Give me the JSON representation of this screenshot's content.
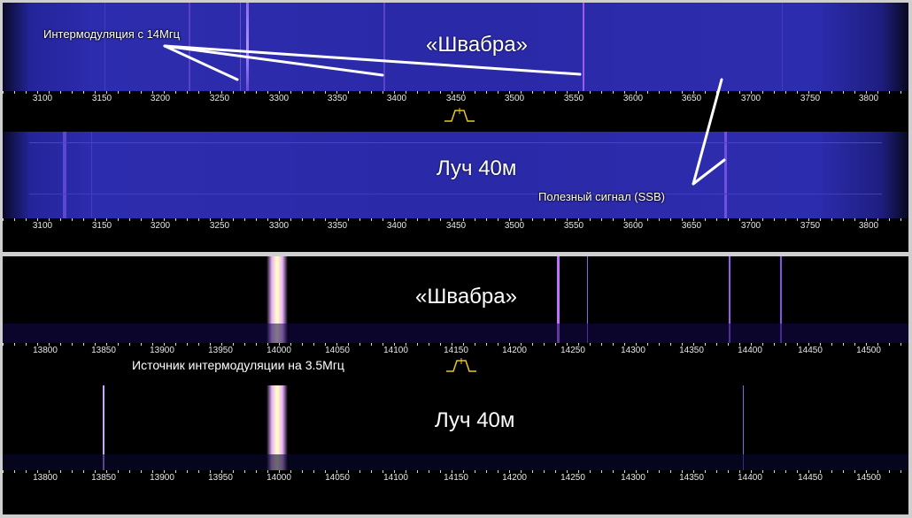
{
  "panels": {
    "top": {
      "waterfall1_title": "«Швабра»",
      "waterfall2_title": "Луч 40м",
      "annotation_intermod": "Интермодуляция с 14Мгц",
      "annotation_useful": "Полезный сигнал (SSB)",
      "scale1_ticks": [
        "3100",
        "3150",
        "3200",
        "3250",
        "3300",
        "3350",
        "3400",
        "3450",
        "3500",
        "3550",
        "3600",
        "3650",
        "3700",
        "3750",
        "3800"
      ],
      "scale2_ticks": [
        "3100",
        "3150",
        "3200",
        "3250",
        "3300",
        "3350",
        "3400",
        "3450",
        "3500",
        "3550",
        "3600",
        "3650",
        "3700",
        "3750",
        "3800"
      ]
    },
    "bottom": {
      "waterfall1_title": "«Швабра»",
      "waterfall2_title": "Луч 40м",
      "annotation_source": "Источник интермодуляции на 3.5Мгц",
      "scale1_ticks": [
        "13800",
        "13850",
        "13900",
        "13950",
        "14000",
        "14050",
        "14100",
        "14150",
        "14200",
        "14250",
        "14300",
        "14350",
        "14400",
        "14450",
        "14500"
      ],
      "scale2_ticks": [
        "13800",
        "13850",
        "13900",
        "13950",
        "14000",
        "14050",
        "14100",
        "14150",
        "14200",
        "14250",
        "14300",
        "14350",
        "14400",
        "14450",
        "14500"
      ]
    }
  },
  "colors": {
    "waterfall_blue": "#2a2aa8",
    "waterfall_violet": "#7a3ae0",
    "carrier_peak": "#fff8c0",
    "filter_marker": "#e8c820",
    "annotation": "#ffffff"
  }
}
